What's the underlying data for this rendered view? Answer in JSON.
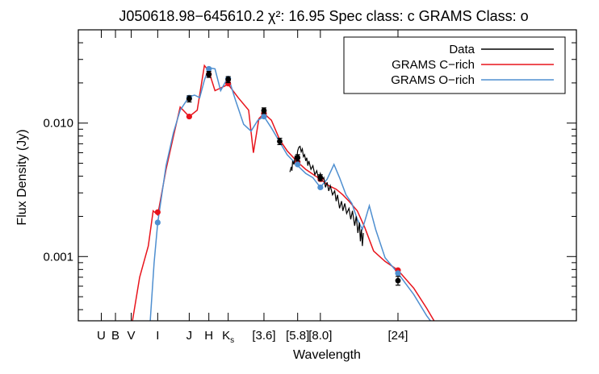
{
  "chart_data": {
    "type": "line",
    "title": "J050618.98−645610.2  χ²: 16.95  Spec class: c GRAMS Class: o",
    "xlabel": "Wavelength",
    "ylabel": "Flux Density (Jy)",
    "x_scale": "log",
    "y_scale": "log",
    "xlim": [
      0.26,
      300
    ],
    "ylim": [
      0.00033,
      0.05
    ],
    "grid": false,
    "legend_position": "top-right",
    "y_ticks": [
      {
        "value": 0.001,
        "label": "0.001"
      },
      {
        "value": 0.01,
        "label": "0.010"
      }
    ],
    "band_labels": [
      {
        "label": "U",
        "wavelength": 0.36
      },
      {
        "label": "B",
        "wavelength": 0.44
      },
      {
        "label": "V",
        "wavelength": 0.55
      },
      {
        "label": "I",
        "wavelength": 0.8
      },
      {
        "label": "J",
        "wavelength": 1.25
      },
      {
        "label": "H",
        "wavelength": 1.65
      },
      {
        "label": "K",
        "sub": "s",
        "wavelength": 2.17
      },
      {
        "label": "[3.6]",
        "wavelength": 3.6
      },
      {
        "label": "[5.8]",
        "wavelength": 5.8
      },
      {
        "label": "[8.0]",
        "wavelength": 8.0
      },
      {
        "label": "[24]",
        "wavelength": 24
      }
    ],
    "series": [
      {
        "name": "Data",
        "color": "#000000",
        "kind": "spectrum_and_photometry",
        "photometry": [
          {
            "x": 1.25,
            "y": 0.0152,
            "err": 0.0008
          },
          {
            "x": 1.65,
            "y": 0.0232,
            "err": 0.0012
          },
          {
            "x": 2.17,
            "y": 0.0212,
            "err": 0.0011
          },
          {
            "x": 3.6,
            "y": 0.0124,
            "err": 0.0006
          },
          {
            "x": 4.5,
            "y": 0.0073,
            "err": 0.0004
          },
          {
            "x": 5.8,
            "y": 0.0055,
            "err": 0.0003
          },
          {
            "x": 8.0,
            "y": 0.0039,
            "err": 0.0002
          },
          {
            "x": 24,
            "y": 0.00066,
            "err": 5e-05
          }
        ],
        "spectrum": [
          [
            5.2,
            0.0043
          ],
          [
            5.3,
            0.0047
          ],
          [
            5.35,
            0.0044
          ],
          [
            5.4,
            0.0052
          ],
          [
            5.5,
            0.0049
          ],
          [
            5.6,
            0.0057
          ],
          [
            5.7,
            0.0051
          ],
          [
            5.8,
            0.0062
          ],
          [
            5.9,
            0.0066
          ],
          [
            6.0,
            0.0067
          ],
          [
            6.1,
            0.0061
          ],
          [
            6.2,
            0.0064
          ],
          [
            6.3,
            0.0056
          ],
          [
            6.4,
            0.0058
          ],
          [
            6.5,
            0.0052
          ],
          [
            6.6,
            0.0055
          ],
          [
            6.7,
            0.0048
          ],
          [
            6.8,
            0.0052
          ],
          [
            7.0,
            0.0045
          ],
          [
            7.2,
            0.0048
          ],
          [
            7.4,
            0.0041
          ],
          [
            7.6,
            0.0044
          ],
          [
            7.8,
            0.0038
          ],
          [
            8.0,
            0.0042
          ],
          [
            8.2,
            0.0037
          ],
          [
            8.4,
            0.0039
          ],
          [
            8.6,
            0.0033
          ],
          [
            8.8,
            0.0036
          ],
          [
            9.0,
            0.0031
          ],
          [
            9.2,
            0.0034
          ],
          [
            9.5,
            0.0029
          ],
          [
            9.8,
            0.0031
          ],
          [
            10.0,
            0.0026
          ],
          [
            10.2,
            0.0029
          ],
          [
            10.5,
            0.0023
          ],
          [
            10.8,
            0.0026
          ],
          [
            11.0,
            0.0022
          ],
          [
            11.3,
            0.0025
          ],
          [
            11.6,
            0.0021
          ],
          [
            12.0,
            0.0023
          ],
          [
            12.3,
            0.0019
          ],
          [
            12.6,
            0.0022
          ],
          [
            13.0,
            0.0017
          ],
          [
            13.3,
            0.002
          ],
          [
            13.6,
            0.0015
          ],
          [
            13.9,
            0.0018
          ],
          [
            14.1,
            0.0013
          ],
          [
            14.3,
            0.0016
          ],
          [
            14.5,
            0.0012
          ],
          [
            14.7,
            0.0015
          ]
        ]
      },
      {
        "name": "GRAMS C−rich",
        "color": "#e8141c",
        "model": [
          [
            0.56,
            0.00033
          ],
          [
            0.62,
            0.0007
          ],
          [
            0.7,
            0.0012
          ],
          [
            0.75,
            0.0022
          ],
          [
            0.8,
            0.00205
          ],
          [
            0.9,
            0.0045
          ],
          [
            1.0,
            0.008
          ],
          [
            1.1,
            0.0132
          ],
          [
            1.25,
            0.0112
          ],
          [
            1.4,
            0.0125
          ],
          [
            1.55,
            0.027
          ],
          [
            1.65,
            0.0245
          ],
          [
            1.8,
            0.0175
          ],
          [
            2.17,
            0.0195
          ],
          [
            2.5,
            0.0155
          ],
          [
            2.9,
            0.0125
          ],
          [
            3.1,
            0.006
          ],
          [
            3.35,
            0.0108
          ],
          [
            3.6,
            0.0118
          ],
          [
            4.0,
            0.0105
          ],
          [
            4.5,
            0.0075
          ],
          [
            5.0,
            0.0062
          ],
          [
            5.8,
            0.0051
          ],
          [
            6.5,
            0.0045
          ],
          [
            7.5,
            0.004
          ],
          [
            8.0,
            0.0038
          ],
          [
            9.0,
            0.0034
          ],
          [
            10.0,
            0.0032
          ],
          [
            11.0,
            0.0029
          ],
          [
            12.0,
            0.0026
          ],
          [
            13.5,
            0.0022
          ],
          [
            15.0,
            0.00165
          ],
          [
            17.0,
            0.0011
          ],
          [
            20.0,
            0.00092
          ],
          [
            24,
            0.00079
          ],
          [
            30.0,
            0.00058
          ],
          [
            36.0,
            0.00041
          ],
          [
            40.0,
            0.00033
          ]
        ],
        "model_photometry": [
          {
            "x": 0.8,
            "y": 0.00215
          },
          {
            "x": 1.25,
            "y": 0.0112
          },
          {
            "x": 1.65,
            "y": 0.0232
          },
          {
            "x": 2.17,
            "y": 0.0198
          },
          {
            "x": 3.6,
            "y": 0.0118
          },
          {
            "x": 5.8,
            "y": 0.0051
          },
          {
            "x": 8.0,
            "y": 0.0038
          },
          {
            "x": 24,
            "y": 0.00079
          }
        ]
      },
      {
        "name": "GRAMS O−rich",
        "color": "#4f8fd0",
        "model": [
          [
            0.72,
            0.00033
          ],
          [
            0.76,
            0.0009
          ],
          [
            0.8,
            0.0018
          ],
          [
            0.9,
            0.0048
          ],
          [
            1.0,
            0.0085
          ],
          [
            1.1,
            0.0125
          ],
          [
            1.25,
            0.0158
          ],
          [
            1.35,
            0.0162
          ],
          [
            1.45,
            0.0155
          ],
          [
            1.55,
            0.021
          ],
          [
            1.65,
            0.026
          ],
          [
            1.8,
            0.0255
          ],
          [
            1.95,
            0.0175
          ],
          [
            2.17,
            0.0222
          ],
          [
            2.4,
            0.015
          ],
          [
            2.7,
            0.0098
          ],
          [
            3.0,
            0.0087
          ],
          [
            3.3,
            0.0105
          ],
          [
            3.6,
            0.0112
          ],
          [
            4.0,
            0.0092
          ],
          [
            4.5,
            0.0072
          ],
          [
            5.0,
            0.0058
          ],
          [
            5.8,
            0.0048
          ],
          [
            6.5,
            0.0042
          ],
          [
            7.2,
            0.0039
          ],
          [
            8.0,
            0.0033
          ],
          [
            8.8,
            0.0038
          ],
          [
            9.7,
            0.0049
          ],
          [
            10.5,
            0.0039
          ],
          [
            11.5,
            0.0029
          ],
          [
            12.5,
            0.0025
          ],
          [
            13.5,
            0.0019
          ],
          [
            14.5,
            0.0016
          ],
          [
            16.0,
            0.0024
          ],
          [
            17.5,
            0.0016
          ],
          [
            20.0,
            0.00098
          ],
          [
            24,
            0.00075
          ],
          [
            30.0,
            0.00052
          ],
          [
            36.0,
            0.00036
          ],
          [
            38.0,
            0.00033
          ]
        ],
        "model_photometry": [
          {
            "x": 0.8,
            "y": 0.0018
          },
          {
            "x": 1.25,
            "y": 0.0155
          },
          {
            "x": 1.65,
            "y": 0.0255
          },
          {
            "x": 2.17,
            "y": 0.0215
          },
          {
            "x": 3.6,
            "y": 0.0112
          },
          {
            "x": 5.8,
            "y": 0.0049
          },
          {
            "x": 8.0,
            "y": 0.0033
          },
          {
            "x": 24,
            "y": 0.00075
          }
        ]
      }
    ]
  }
}
